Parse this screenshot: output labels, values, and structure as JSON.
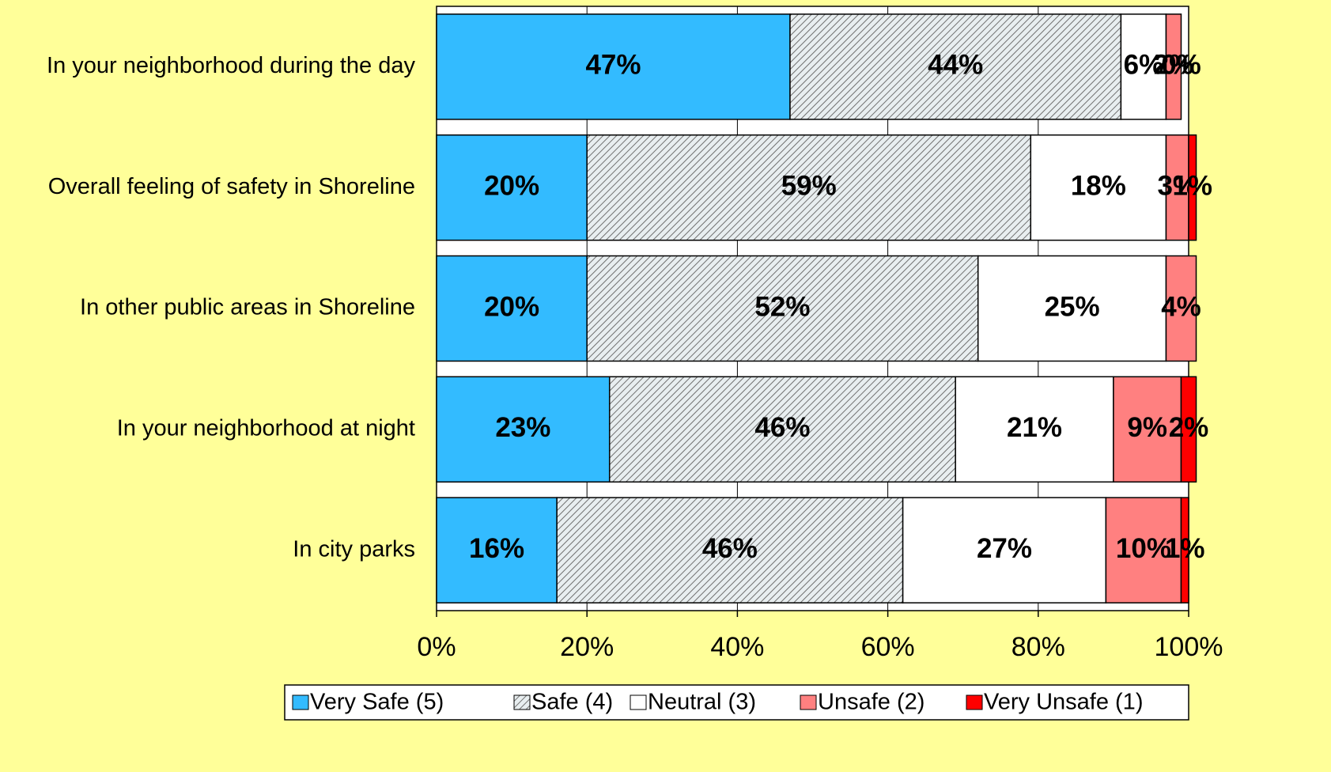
{
  "chart_data": {
    "type": "stacked-bar-horizontal",
    "categories": [
      "In your neighborhood during the day",
      "Overall feeling of safety in Shoreline",
      "In other public areas in Shoreline",
      "In your neighborhood at night",
      "In city parks"
    ],
    "series": [
      {
        "name": "Very Safe (5)",
        "color": "#33bbff",
        "values": [
          47,
          20,
          20,
          23,
          16
        ],
        "value_labels": [
          "47%",
          "20%",
          "20%",
          "23%",
          "16%"
        ]
      },
      {
        "name": "Safe (4)",
        "color": "#c8d8dc",
        "values": [
          44,
          59,
          52,
          46,
          46
        ],
        "value_labels": [
          "44%",
          "59%",
          "52%",
          "46%",
          "46%"
        ]
      },
      {
        "name": "Neutral (3)",
        "color": "#ffffff",
        "values": [
          6,
          18,
          25,
          21,
          27
        ],
        "value_labels": [
          "6%",
          "18%",
          "25%",
          "21%",
          "27%"
        ]
      },
      {
        "name": "Unsafe (2)",
        "color": "#ff8080",
        "values": [
          2,
          3,
          4,
          9,
          10
        ],
        "value_labels": [
          "2%",
          "3%",
          "4%",
          "9%",
          "10%"
        ]
      },
      {
        "name": "Very Unsafe (1)",
        "color": "#ff0000",
        "values": [
          0,
          1,
          null,
          2,
          1
        ],
        "value_labels": [
          "0%",
          "1%",
          null,
          "2%",
          "1%"
        ]
      }
    ],
    "xlim": [
      0,
      100
    ],
    "xticks": [
      {
        "value": 0,
        "label": "0%"
      },
      {
        "value": 20,
        "label": "20%"
      },
      {
        "value": 40,
        "label": "40%"
      },
      {
        "value": 60,
        "label": "60%"
      },
      {
        "value": 80,
        "label": "80%"
      },
      {
        "value": 100,
        "label": "100%"
      }
    ],
    "grid": true,
    "legend": "bottom"
  }
}
